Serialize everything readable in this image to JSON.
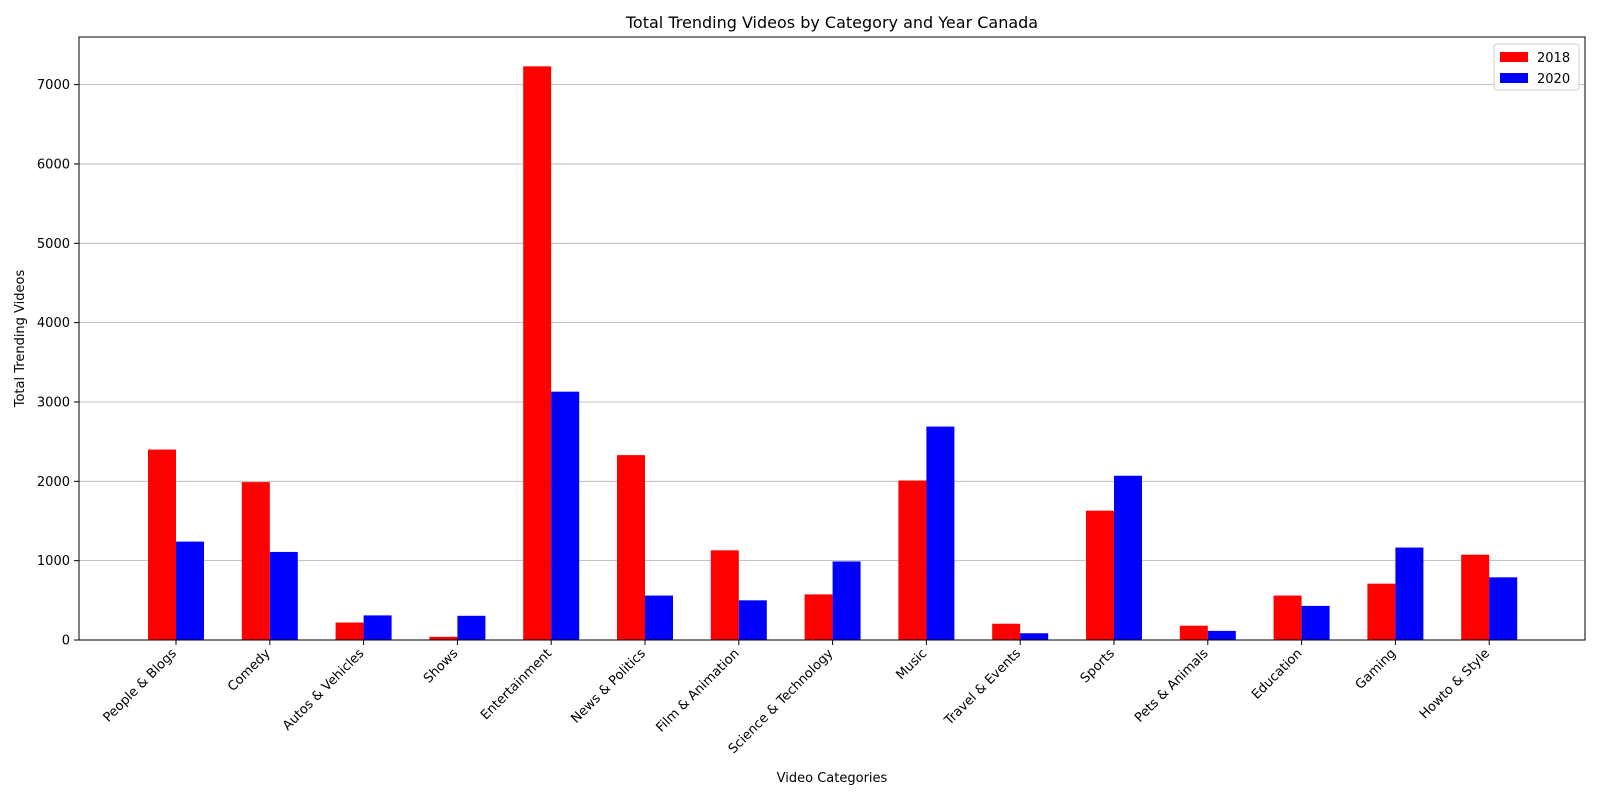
{
  "chart_data": {
    "type": "bar",
    "title": "Total Trending Videos by Category and Year Canada",
    "xlabel": "Video Categories",
    "ylabel": "Total Trending Videos",
    "ylim": [
      0,
      7600
    ],
    "yticks": [
      0,
      1000,
      2000,
      3000,
      4000,
      5000,
      6000,
      7000
    ],
    "grid": "horizontal",
    "legend_position": "top-right",
    "categories": [
      "People & Blogs",
      "Comedy",
      "Autos & Vehicles",
      "Shows",
      "Entertainment",
      "News & Politics",
      "Film & Animation",
      "Science & Technology",
      "Music",
      "Travel & Events",
      "Sports",
      "Pets & Animals",
      "Education",
      "Gaming",
      "Howto & Style"
    ],
    "series": [
      {
        "name": "2018",
        "color": "#ff0000",
        "values": [
          2400,
          1990,
          220,
          40,
          7230,
          2330,
          1130,
          575,
          2010,
          205,
          1630,
          180,
          560,
          710,
          1075
        ]
      },
      {
        "name": "2020",
        "color": "#0000ff",
        "values": [
          1240,
          1110,
          310,
          305,
          3130,
          560,
          500,
          990,
          2690,
          85,
          2070,
          115,
          430,
          1165,
          790
        ]
      }
    ]
  }
}
